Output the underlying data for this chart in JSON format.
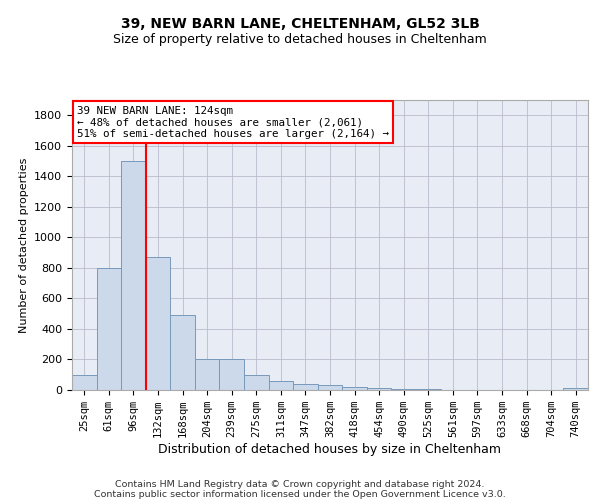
{
  "title1": "39, NEW BARN LANE, CHELTENHAM, GL52 3LB",
  "title2": "Size of property relative to detached houses in Cheltenham",
  "xlabel": "Distribution of detached houses by size in Cheltenham",
  "ylabel": "Number of detached properties",
  "categories": [
    "25sqm",
    "61sqm",
    "96sqm",
    "132sqm",
    "168sqm",
    "204sqm",
    "239sqm",
    "275sqm",
    "311sqm",
    "347sqm",
    "382sqm",
    "418sqm",
    "454sqm",
    "490sqm",
    "525sqm",
    "561sqm",
    "597sqm",
    "633sqm",
    "668sqm",
    "704sqm",
    "740sqm"
  ],
  "values": [
    100,
    800,
    1500,
    870,
    490,
    200,
    200,
    100,
    60,
    40,
    30,
    20,
    15,
    5,
    5,
    3,
    2,
    1,
    1,
    1,
    15
  ],
  "bar_color": "#ccd9ea",
  "bar_edge_color": "#7799bb",
  "vline_x": 2.5,
  "vline_color": "red",
  "annotation_text": "39 NEW BARN LANE: 124sqm\n← 48% of detached houses are smaller (2,061)\n51% of semi-detached houses are larger (2,164) →",
  "annotation_box_color": "white",
  "annotation_box_edge": "red",
  "ylim_max": 1900,
  "yticks": [
    0,
    200,
    400,
    600,
    800,
    1000,
    1200,
    1400,
    1600,
    1800
  ],
  "grid_color": "#bbbbcc",
  "bg_color": "#e8ecf4",
  "footer1": "Contains HM Land Registry data © Crown copyright and database right 2024.",
  "footer2": "Contains public sector information licensed under the Open Government Licence v3.0."
}
